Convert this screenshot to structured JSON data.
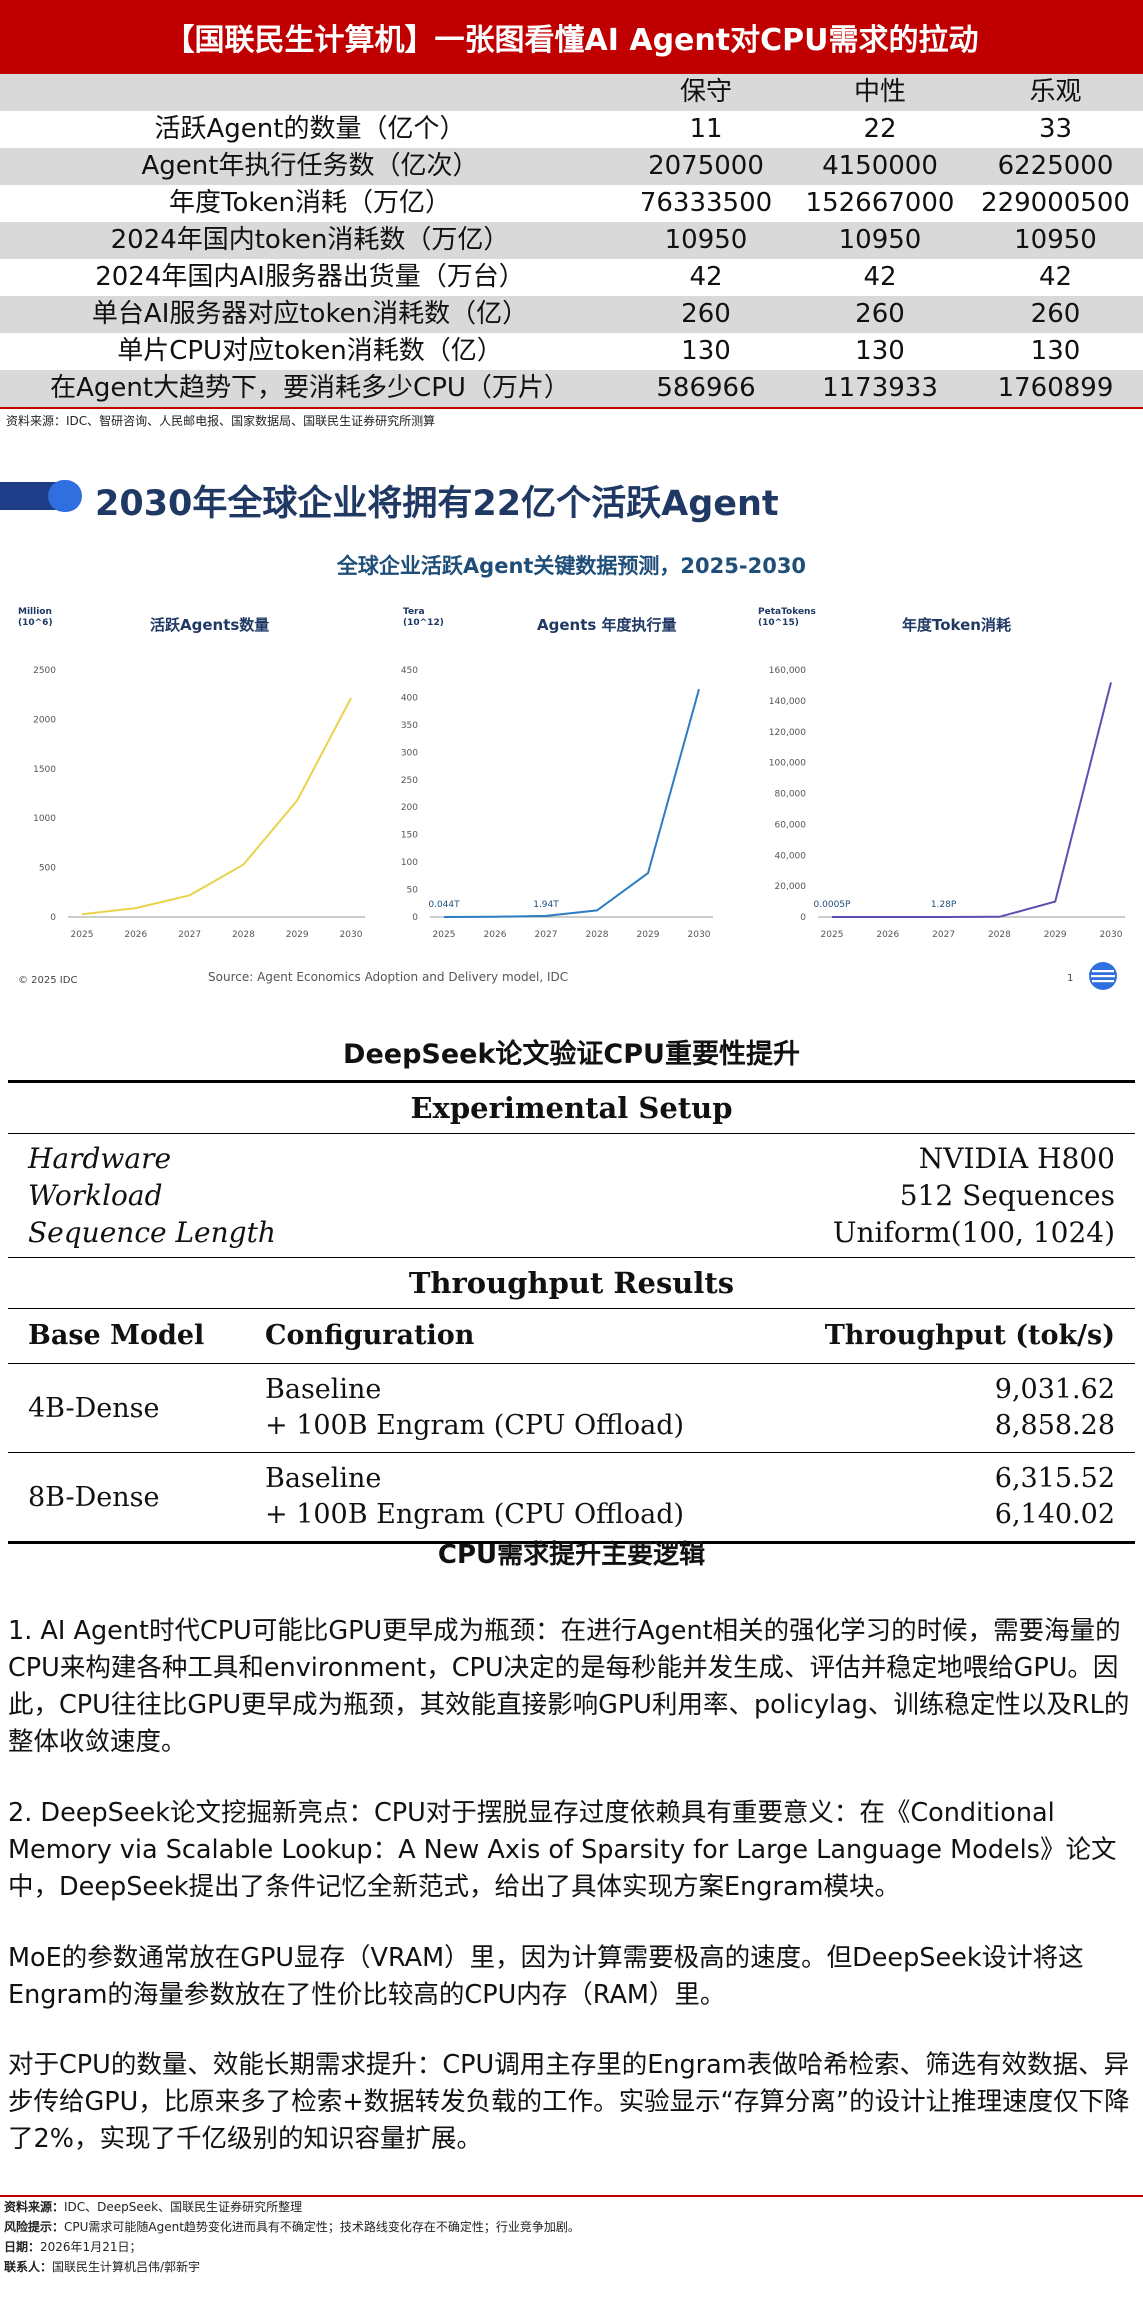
{
  "header": {
    "title": "【国联民生计算机】一张图看懂AI Agent对CPU需求的拉动",
    "columns": [
      "",
      "保守",
      "中性",
      "乐观"
    ],
    "rows": [
      {
        "label": "活跃Agent的数量（亿个）",
        "values": [
          "11",
          "22",
          "33"
        ]
      },
      {
        "label": "Agent年执行任务数（亿次）",
        "values": [
          "2075000",
          "4150000",
          "6225000"
        ]
      },
      {
        "label": "年度Token消耗（万亿）",
        "values": [
          "76333500",
          "152667000",
          "229000500"
        ]
      },
      {
        "label": "2024年国内token消耗数（万亿）",
        "values": [
          "10950",
          "10950",
          "10950"
        ]
      },
      {
        "label": "2024年国内AI服务器出货量（万台）",
        "values": [
          "42",
          "42",
          "42"
        ]
      },
      {
        "label": "单台AI服务器对应token消耗数（亿）",
        "values": [
          "260",
          "260",
          "260"
        ]
      },
      {
        "label": "单片CPU对应token消耗数（亿）",
        "values": [
          "130",
          "130",
          "130"
        ]
      },
      {
        "label": "在Agent大趋势下，要消耗多少CPU（万片）",
        "values": [
          "586966",
          "1173933",
          "1760899"
        ]
      }
    ],
    "source": "资料来源：IDC、智研咨询、人民邮电报、国家数据局、国联民生证券研究所测算"
  },
  "slide": {
    "title": "2030年全球企业将拥有22亿个活跃Agent",
    "subtitle": "全球企业活跃Agent关键数据预测，2025-2030",
    "copyright": "© 2025 IDC",
    "source": "Source: Agent Economics Adoption and Delivery model, IDC",
    "page_number": "1",
    "colors": {
      "yellow": "#e8d34a",
      "blue": "#2e7cc4",
      "purple": "#5b4fb0",
      "title": "#1f3864"
    }
  },
  "chart_data": [
    {
      "type": "line",
      "title": "活跃Agents数量",
      "unit_line1": "Million",
      "unit_line2": "(10^6)",
      "x": [
        "2025",
        "2026",
        "2027",
        "2028",
        "2029",
        "2030"
      ],
      "y_ticks": [
        "0",
        "500",
        "1000",
        "1500",
        "2000",
        "2500"
      ],
      "ylim": [
        0,
        2500
      ],
      "series": [
        {
          "values": [
            28,
            90,
            220,
            530,
            1180,
            2216
          ]
        }
      ],
      "color": "#e8d34a",
      "annotations": []
    },
    {
      "type": "line",
      "title": "Agents 年度执行量",
      "unit_line1": "Tera",
      "unit_line2": "(10^12)",
      "x": [
        "2025",
        "2026",
        "2027",
        "2028",
        "2029",
        "2030"
      ],
      "y_ticks": [
        "0",
        "50",
        "100",
        "150",
        "200",
        "250",
        "300",
        "350",
        "400",
        "450"
      ],
      "ylim": [
        0,
        450
      ],
      "series": [
        {
          "values": [
            0.044,
            0.3,
            1.94,
            12,
            80,
            415
          ]
        }
      ],
      "color": "#2e7cc4",
      "annotations": [
        {
          "x": "2025",
          "label": "0.044T"
        },
        {
          "x": "2027",
          "label": "1.94T"
        }
      ]
    },
    {
      "type": "line",
      "title": "年度Token消耗",
      "unit_line1": "PetaTokens",
      "unit_line2": "(10^15)",
      "x": [
        "2025",
        "2026",
        "2027",
        "2028",
        "2029",
        "2030"
      ],
      "y_ticks": [
        "0",
        "20,000",
        "40,000",
        "60,000",
        "80,000",
        "100,000",
        "120,000",
        "140,000",
        "160,000"
      ],
      "ylim": [
        0,
        160000
      ],
      "series": [
        {
          "values": [
            0.0005,
            0.05,
            1.28,
            100,
            10000,
            152000
          ]
        }
      ],
      "color": "#5b4fb0",
      "annotations": [
        {
          "x": "2025",
          "label": "0.0005P"
        },
        {
          "x": "2027",
          "label": "1.28P"
        }
      ]
    }
  ],
  "deepseek": {
    "title": "DeepSeek论文验证CPU重要性提升",
    "setup_heading": "Experimental Setup",
    "setup": [
      {
        "key": "Hardware",
        "value": "NVIDIA H800"
      },
      {
        "key": "Workload",
        "value": "512 Sequences"
      },
      {
        "key": "Sequence Length",
        "value": "Uniform(100, 1024)"
      }
    ],
    "results_heading": "Throughput Results",
    "columns": [
      "Base Model",
      "Configuration",
      "Throughput (tok/s)"
    ],
    "rows": [
      {
        "model": "4B-Dense",
        "configs": [
          "Baseline",
          "+ 100B Engram (CPU Offload)"
        ],
        "values": [
          "9,031.62",
          "8,858.28"
        ]
      },
      {
        "model": "8B-Dense",
        "configs": [
          "Baseline",
          "+ 100B Engram (CPU Offload)"
        ],
        "values": [
          "6,315.52",
          "6,140.02"
        ]
      }
    ]
  },
  "logic": {
    "title": "CPU需求提升主要逻辑",
    "paragraphs": [
      "1. AI Agent时代CPU可能比GPU更早成为瓶颈：在进行Agent相关的强化学习的时候，需要海量的CPU来构建各种工具和environment，CPU决定的是每秒能并发生成、评估并稳定地喂给GPU。因此，CPU往往比GPU更早成为瓶颈，其效能直接影响GPU利用率、policylag、训练稳定性以及RL的整体收敛速度。",
      "2. DeepSeek论文挖掘新亮点：CPU对于摆脱显存过度依赖具有重要意义：在《Conditional Memory via Scalable Lookup：A New Axis of Sparsity for Large Language Models》论文中，DeepSeek提出了条件记忆全新范式，给出了具体实现方案Engram模块。",
      "MoE的参数通常放在GPU显存（VRAM）里，因为计算需要极高的速度。但DeepSeek设计将这Engram的海量参数放在了性价比较高的CPU内存（RAM）里。",
      "对于CPU的数量、效能长期需求提升：CPU调用主存里的Engram表做哈希检索、筛选有效数据、异步传给GPU，比原来多了检索+数据转发负载的工作。实验显示“存算分离”的设计让推理速度仅下降了2%，实现了千亿级别的知识容量扩展。"
    ]
  },
  "footer": {
    "source_label": "资料来源：",
    "source_text": "IDC、DeepSeek、国联民生证券研究所整理",
    "risk_label": "风险提示：",
    "risk_text": "CPU需求可能随Agent趋势变化进而具有不确定性；技术路线变化存在不确定性；行业竞争加剧。",
    "date_label": "日期：",
    "date_text": "2026年1月21日；",
    "contact_label": "联系人：",
    "contact_text": "国联民生计算机吕伟/郭新宇"
  }
}
